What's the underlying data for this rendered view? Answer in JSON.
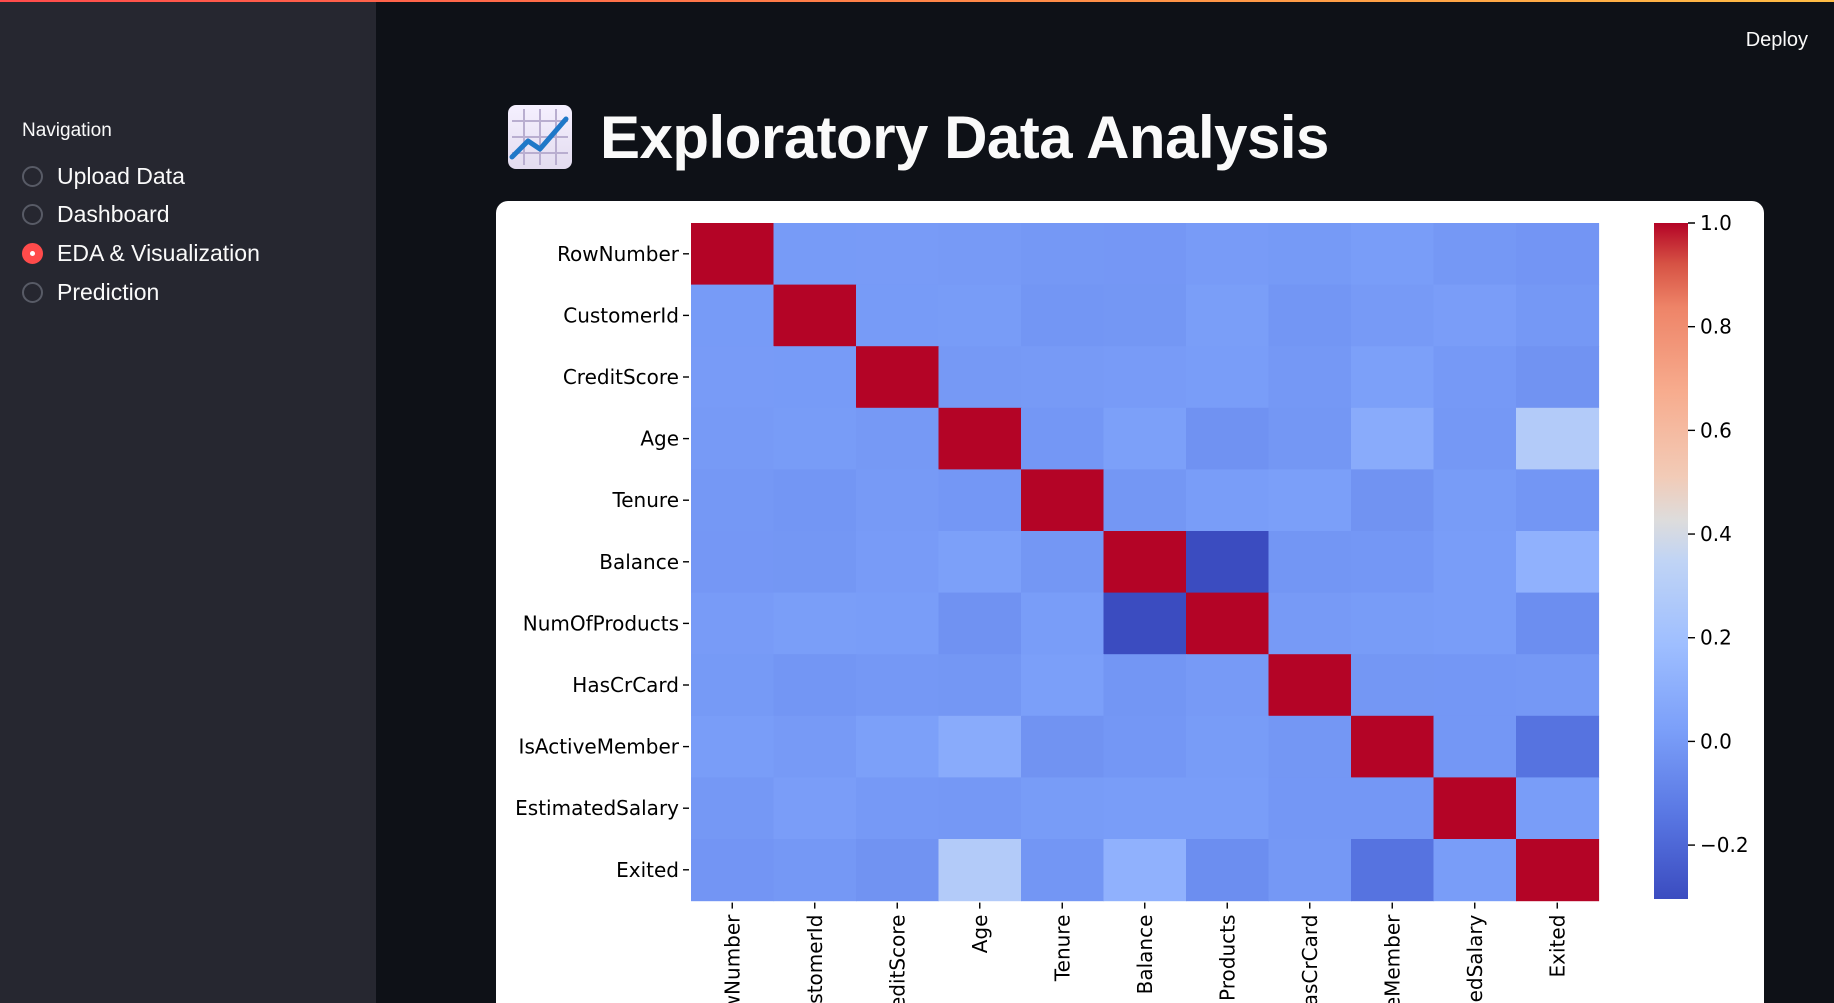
{
  "sidebar": {
    "heading": "Navigation",
    "items": [
      {
        "label": "Upload Data",
        "selected": false
      },
      {
        "label": "Dashboard",
        "selected": false
      },
      {
        "label": "EDA & Visualization",
        "selected": true
      },
      {
        "label": "Prediction",
        "selected": false
      }
    ]
  },
  "header": {
    "deploy_label": "Deploy"
  },
  "main": {
    "title": "Exploratory Data Analysis",
    "title_icon": "chart-increasing-icon"
  },
  "chart_data": {
    "type": "heatmap",
    "title": "",
    "colormap": "coolwarm",
    "rows": [
      "RowNumber",
      "CustomerId",
      "CreditScore",
      "Age",
      "Tenure",
      "Balance",
      "NumOfProducts",
      "HasCrCard",
      "IsActiveMember",
      "EstimatedSalary",
      "Exited"
    ],
    "columns_visible": [
      "wNumber",
      "stomerId",
      "editScore",
      "Age",
      "Tenure",
      "Balance",
      "Products",
      "asCrCard",
      "eMember",
      "edSalary",
      "Exited"
    ],
    "values": [
      [
        1.0,
        0.004,
        0.006,
        0.001,
        -0.006,
        -0.009,
        0.007,
        0.0,
        0.012,
        -0.006,
        -0.017
      ],
      [
        0.004,
        1.0,
        0.005,
        0.009,
        -0.015,
        -0.012,
        0.017,
        -0.014,
        0.002,
        0.015,
        -0.006
      ],
      [
        0.006,
        0.005,
        1.0,
        -0.004,
        0.001,
        0.006,
        0.012,
        -0.005,
        0.026,
        -0.001,
        -0.027
      ],
      [
        0.001,
        0.009,
        -0.004,
        1.0,
        -0.01,
        0.028,
        -0.031,
        -0.012,
        0.085,
        -0.007,
        0.285
      ],
      [
        -0.006,
        -0.015,
        0.001,
        -0.01,
        1.0,
        -0.012,
        0.013,
        0.023,
        -0.028,
        0.008,
        -0.014
      ],
      [
        -0.009,
        -0.012,
        0.006,
        0.028,
        -0.012,
        1.0,
        -0.304,
        -0.015,
        -0.01,
        0.013,
        0.119
      ],
      [
        0.007,
        0.017,
        0.012,
        -0.031,
        0.013,
        -0.304,
        1.0,
        0.003,
        0.01,
        0.014,
        -0.048
      ],
      [
        0.0,
        -0.014,
        -0.005,
        -0.012,
        0.023,
        -0.015,
        0.003,
        1.0,
        -0.012,
        -0.01,
        -0.007
      ],
      [
        0.012,
        0.002,
        0.026,
        0.085,
        -0.028,
        -0.01,
        0.01,
        -0.012,
        1.0,
        -0.011,
        -0.156
      ],
      [
        -0.006,
        0.015,
        -0.001,
        -0.007,
        0.008,
        0.013,
        0.014,
        -0.01,
        -0.011,
        1.0,
        0.012
      ],
      [
        -0.017,
        -0.006,
        -0.027,
        0.285,
        -0.014,
        0.119,
        -0.048,
        -0.007,
        -0.156,
        0.012,
        1.0
      ]
    ],
    "vmin": -0.304,
    "vmax": 1.0,
    "colorbar_ticks": [
      {
        "value": 1.0,
        "label": "1.0"
      },
      {
        "value": 0.8,
        "label": "0.8"
      },
      {
        "value": 0.6,
        "label": "0.6"
      },
      {
        "value": 0.4,
        "label": "0.4"
      },
      {
        "value": 0.2,
        "label": "0.2"
      },
      {
        "value": 0.0,
        "label": "0.0"
      },
      {
        "value": -0.2,
        "label": "−0.2"
      }
    ]
  }
}
